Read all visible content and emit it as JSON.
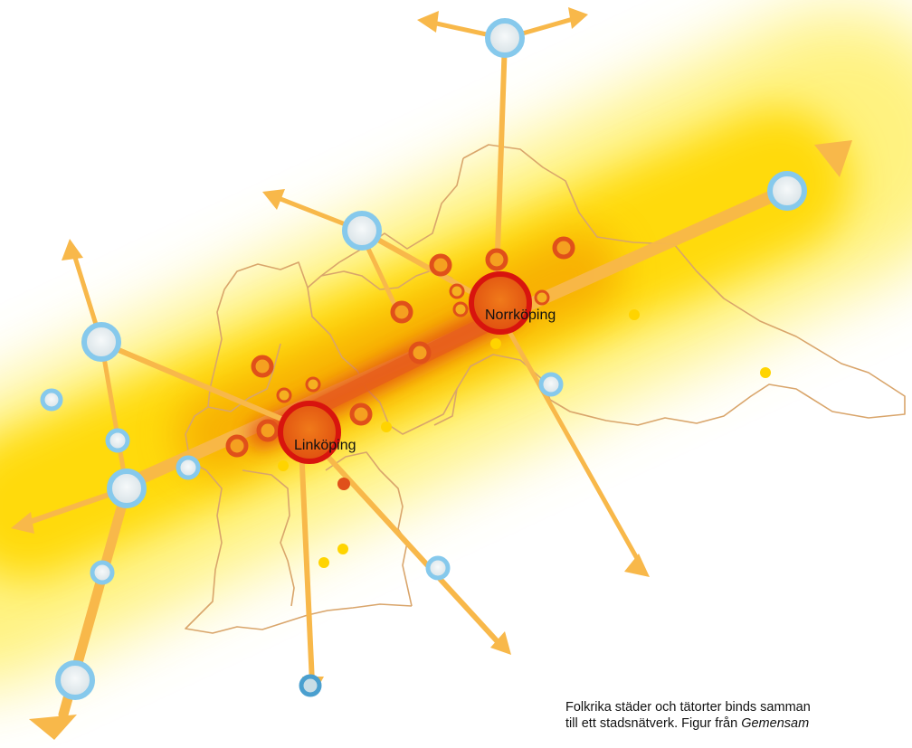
{
  "map": {
    "cities": {
      "linkoping": {
        "label": "Linköping"
      },
      "norrkoping": {
        "label": "Norrköping"
      }
    },
    "colors": {
      "corridor_glow": "#FFE600",
      "corridor_core": "#E05A10",
      "connector": "#F8B84A",
      "city_hub": "#E3180E",
      "town_orange": "#E8501A",
      "node_small": "#FFD400",
      "node_blue": "#86C9EC",
      "border": "#D9A56B"
    }
  },
  "caption": {
    "line1": "Folkrika städer och tätorter binds samman",
    "line2_prefix": "till ett stadsnätverk. Figur från ",
    "line2_italic": "Gemensam"
  }
}
